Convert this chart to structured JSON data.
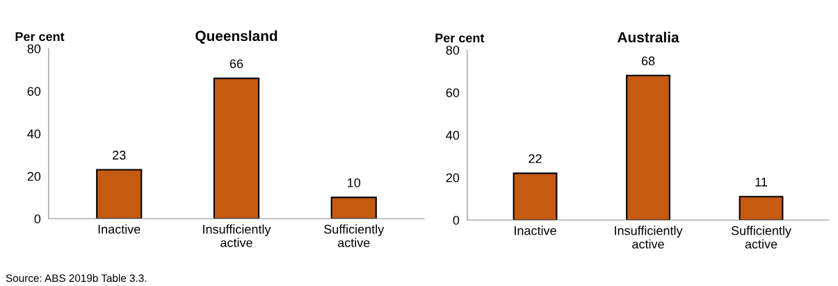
{
  "chart_data": [
    {
      "type": "bar",
      "title": "Queensland",
      "ylabel": "Per cent",
      "categories": [
        "Inactive",
        "Insufficiently\nactive",
        "Sufficiently\nactive"
      ],
      "values": [
        23,
        66,
        10
      ],
      "color": "#c55a11",
      "ylim": [
        0,
        80
      ],
      "yticks": [
        0,
        20,
        40,
        60,
        80
      ],
      "data_labels": true,
      "grid": false,
      "legend": false,
      "annotations": [
        "Source: ABS 2019b Table 3.3."
      ]
    },
    {
      "type": "bar",
      "title": "Australia",
      "ylabel": "Per cent",
      "categories": [
        "Inactive",
        "Insufficiently\nactive",
        "Sufficiently\nactive"
      ],
      "values": [
        22,
        68,
        11
      ],
      "color": "#c55a11",
      "ylim": [
        0,
        80
      ],
      "yticks": [
        0,
        20,
        40,
        60,
        80
      ],
      "data_labels": true,
      "grid": false,
      "legend": false
    }
  ]
}
